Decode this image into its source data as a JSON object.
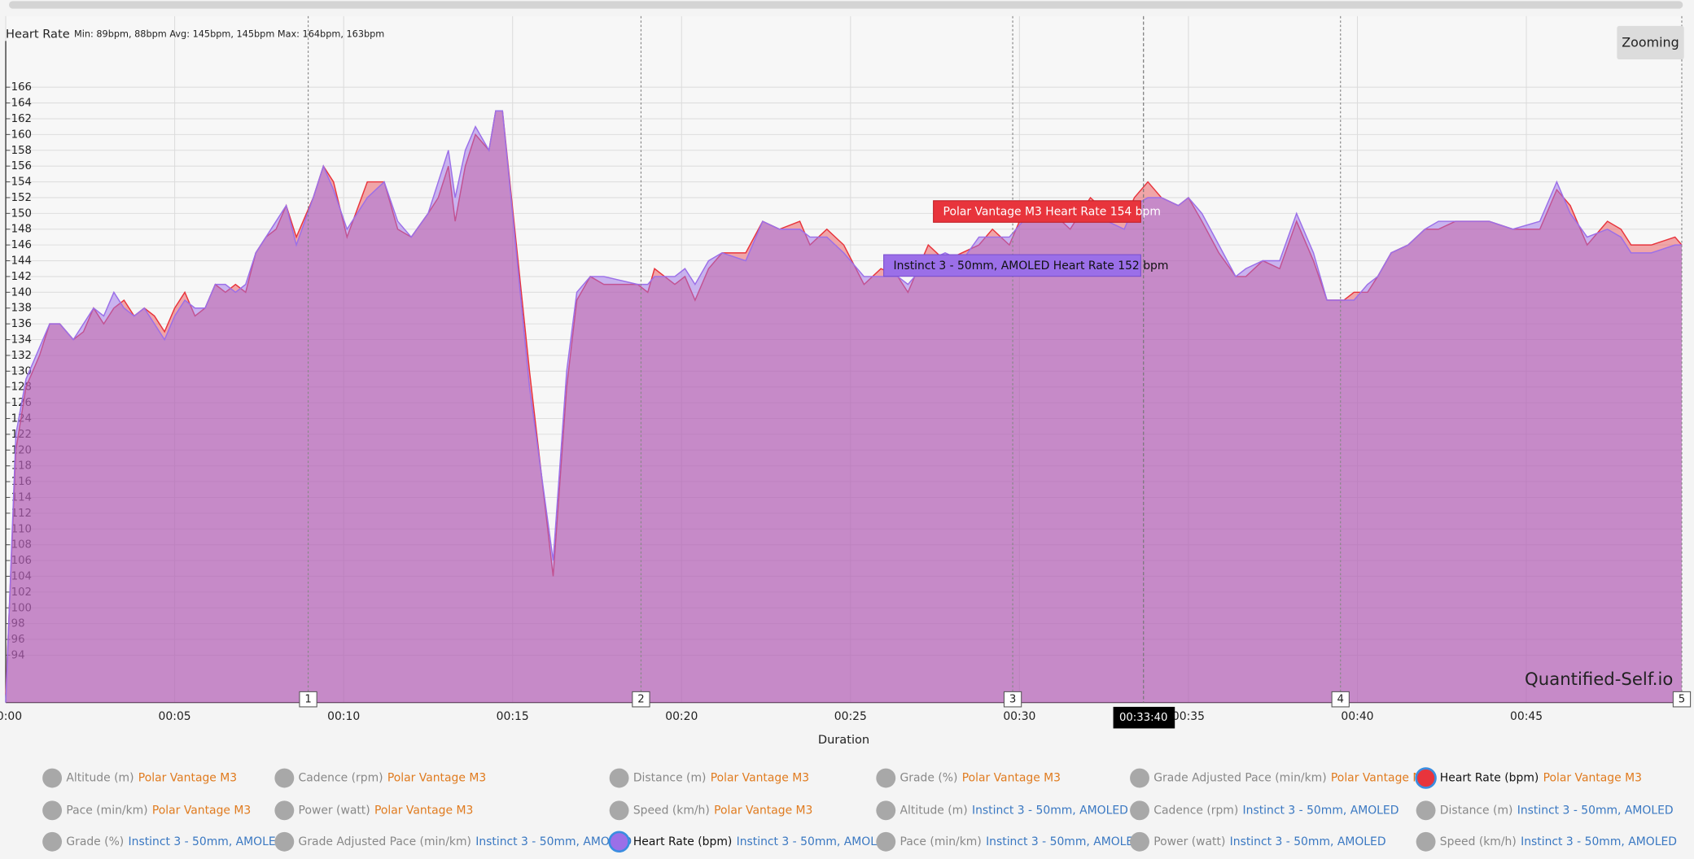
{
  "chart_data": {
    "type": "area",
    "title": "Heart Rate",
    "stats": "Min: 89bpm, 88bpm Avg: 145bpm, 145bpm Max: 164bpm, 163bpm",
    "x_label": "Duration",
    "x": [
      0,
      0.3,
      0.6,
      1.0,
      1.3,
      1.6,
      2.0,
      2.3,
      2.6,
      2.9,
      3.2,
      3.5,
      3.8,
      4.1,
      4.4,
      4.7,
      5.0,
      5.3,
      5.6,
      5.9,
      6.2,
      6.5,
      6.8,
      7.1,
      7.4,
      7.7,
      8.0,
      8.3,
      8.6,
      9.1,
      9.4,
      9.7,
      10.1,
      10.7,
      11.2,
      11.6,
      12.0,
      12.5,
      12.8,
      13.1,
      13.3,
      13.6,
      13.9,
      14.3,
      14.5,
      14.7,
      15.5,
      16.2,
      16.6,
      16.9,
      17.3,
      17.7,
      18.7,
      19.0,
      19.2,
      19.5,
      19.8,
      20.1,
      20.4,
      20.8,
      21.2,
      21.9,
      22.4,
      22.9,
      23.5,
      23.8,
      24.3,
      24.8,
      25.4,
      25.9,
      26.4,
      26.7,
      27.3,
      27.8,
      28.3,
      28.8,
      29.2,
      29.7,
      30.1,
      30.5,
      31.0,
      31.5,
      32.1,
      32.6,
      33.1,
      33.4,
      33.8,
      34.2,
      34.7,
      35.0,
      35.4,
      35.9,
      36.4,
      36.7,
      37.2,
      37.7,
      38.2,
      38.7,
      39.1,
      39.6,
      39.9,
      40.3,
      40.6,
      41.0,
      41.5,
      42.0,
      42.4,
      42.9,
      43.9,
      44.6,
      45.4,
      45.9,
      46.3,
      46.8,
      47.4,
      47.8,
      48.1,
      48.7,
      49.4,
      49.6
    ],
    "series": [
      {
        "name": "Polar Vantage M3",
        "color": "#e8343c",
        "values": [
          89,
          120,
          128,
          132,
          136,
          136,
          134,
          135,
          138,
          136,
          138,
          139,
          137,
          138,
          137,
          135,
          138,
          140,
          137,
          138,
          141,
          140,
          141,
          140,
          145,
          147,
          148,
          151,
          147,
          152,
          156,
          154,
          147,
          154,
          154,
          148,
          147,
          150,
          152,
          156,
          149,
          156,
          160,
          158,
          163,
          163,
          130,
          104,
          128,
          139,
          142,
          141,
          141,
          140,
          143,
          142,
          141,
          142,
          139,
          143,
          145,
          145,
          149,
          148,
          149,
          146,
          148,
          146,
          141,
          143,
          142,
          140,
          146,
          144,
          145,
          146,
          148,
          146,
          150,
          149,
          150,
          148,
          152,
          150,
          149,
          152,
          154,
          152,
          151,
          152,
          149,
          145,
          142,
          142,
          144,
          143,
          149,
          144,
          139,
          139,
          140,
          140,
          142,
          145,
          146,
          148,
          148,
          149,
          149,
          148,
          148,
          153,
          151,
          146,
          149,
          148,
          146,
          146,
          147,
          146
        ]
      },
      {
        "name": "Instinct 3 - 50mm, AMOLED",
        "color": "#9b6fe8",
        "values": [
          88,
          122,
          129,
          133,
          136,
          136,
          134,
          136,
          138,
          137,
          140,
          138,
          137,
          138,
          136,
          134,
          137,
          139,
          138,
          138,
          141,
          141,
          140,
          141,
          145,
          147,
          149,
          151,
          146,
          152,
          156,
          153,
          148,
          152,
          154,
          149,
          147,
          150,
          154,
          158,
          152,
          158,
          161,
          158,
          163,
          163,
          128,
          106,
          130,
          140,
          142,
          142,
          141,
          141,
          142,
          142,
          142,
          143,
          141,
          144,
          145,
          144,
          149,
          148,
          148,
          147,
          147,
          145,
          142,
          142,
          142,
          141,
          144,
          145,
          144,
          147,
          147,
          147,
          149,
          150,
          149,
          149,
          151,
          149,
          148,
          151,
          152,
          152,
          151,
          152,
          150,
          146,
          142,
          143,
          144,
          144,
          150,
          145,
          139,
          139,
          139,
          141,
          142,
          145,
          146,
          148,
          149,
          149,
          149,
          148,
          149,
          154,
          150,
          147,
          148,
          147,
          145,
          145,
          146,
          146
        ]
      }
    ],
    "xlim": [
      0,
      49.6
    ],
    "xticks": [
      {
        "value": 0,
        "label": "00:00"
      },
      {
        "value": 5,
        "label": "00:05"
      },
      {
        "value": 10,
        "label": "00:10"
      },
      {
        "value": 15,
        "label": "00:15"
      },
      {
        "value": 20,
        "label": "00:20"
      },
      {
        "value": 25,
        "label": "00:25"
      },
      {
        "value": 30,
        "label": "00:30"
      },
      {
        "value": 35,
        "label": "00:35"
      },
      {
        "value": 40,
        "label": "00:40"
      },
      {
        "value": 45,
        "label": "00:45"
      }
    ],
    "ylim": [
      88,
      175
    ],
    "yticks": [
      94,
      96,
      98,
      100,
      102,
      104,
      106,
      108,
      110,
      112,
      114,
      116,
      118,
      120,
      122,
      124,
      126,
      128,
      130,
      132,
      134,
      136,
      138,
      140,
      142,
      144,
      146,
      148,
      150,
      152,
      154,
      156,
      158,
      160,
      162,
      164,
      166
    ],
    "grid": true,
    "laps": [
      {
        "label": "1",
        "x": 8.95
      },
      {
        "label": "2",
        "x": 18.8
      },
      {
        "label": "3",
        "x": 29.8
      },
      {
        "label": "4",
        "x": 39.5
      },
      {
        "label": "5",
        "x": 49.6
      }
    ],
    "cursor": {
      "x": 33.67,
      "label": "00:33:40"
    },
    "tooltips": [
      "Polar Vantage M3 Heart Rate 154 bpm",
      "Instinct 3 - 50mm, AMOLED Heart Rate 152 bpm"
    ],
    "watermark": "Quantified-Self.io"
  },
  "zoom_button": "Zooming",
  "legend_items": [
    {
      "metric": "Altitude (m)",
      "device": "Polar Vantage M3",
      "device_color": "#e07b1f",
      "active": false
    },
    {
      "metric": "Cadence (rpm)",
      "device": "Polar Vantage M3",
      "device_color": "#e07b1f",
      "active": false
    },
    {
      "metric": "Distance (m)",
      "device": "Polar Vantage M3",
      "device_color": "#e07b1f",
      "active": false
    },
    {
      "metric": "Grade (%)",
      "device": "Polar Vantage M3",
      "device_color": "#e07b1f",
      "active": false
    },
    {
      "metric": "Grade Adjusted Pace (min/km)",
      "device": "Polar Vantage M3",
      "device_color": "#e07b1f",
      "active": false
    },
    {
      "metric": "Heart Rate (bpm)",
      "device": "Polar Vantage M3",
      "device_color": "#e07b1f",
      "active": true
    },
    {
      "metric": "Pace (min/km)",
      "device": "Polar Vantage M3",
      "device_color": "#e07b1f",
      "active": false
    },
    {
      "metric": "Power (watt)",
      "device": "Polar Vantage M3",
      "device_color": "#e07b1f",
      "active": false
    },
    {
      "metric": "Speed (km/h)",
      "device": "Polar Vantage M3",
      "device_color": "#e07b1f",
      "active": false
    },
    {
      "metric": "Altitude (m)",
      "device": "Instinct 3 - 50mm, AMOLED",
      "device_color": "#3a78c2",
      "active": false
    },
    {
      "metric": "Cadence (rpm)",
      "device": "Instinct 3 - 50mm, AMOLED",
      "device_color": "#3a78c2",
      "active": false
    },
    {
      "metric": "Distance (m)",
      "device": "Instinct 3 - 50mm, AMOLED",
      "device_color": "#3a78c2",
      "active": false
    },
    {
      "metric": "Grade (%)",
      "device": "Instinct 3 - 50mm, AMOLED",
      "device_color": "#3a78c2",
      "active": false
    },
    {
      "metric": "Grade Adjusted Pace (min/km)",
      "device": "Instinct 3 - 50mm, AMOLED",
      "device_color": "#3a78c2",
      "active": false
    },
    {
      "metric": "Heart Rate (bpm)",
      "device": "Instinct 3 - 50mm, AMOLED",
      "device_color": "#3a78c2",
      "active": true
    },
    {
      "metric": "Pace (min/km)",
      "device": "Instinct 3 - 50mm, AMOLED",
      "device_color": "#3a78c2",
      "active": false
    },
    {
      "metric": "Power (watt)",
      "device": "Instinct 3 - 50mm, AMOLED",
      "device_color": "#3a78c2",
      "active": false
    },
    {
      "metric": "Speed (km/h)",
      "device": "Instinct 3 - 50mm, AMOLED",
      "device_color": "#3a78c2",
      "active": false
    }
  ]
}
